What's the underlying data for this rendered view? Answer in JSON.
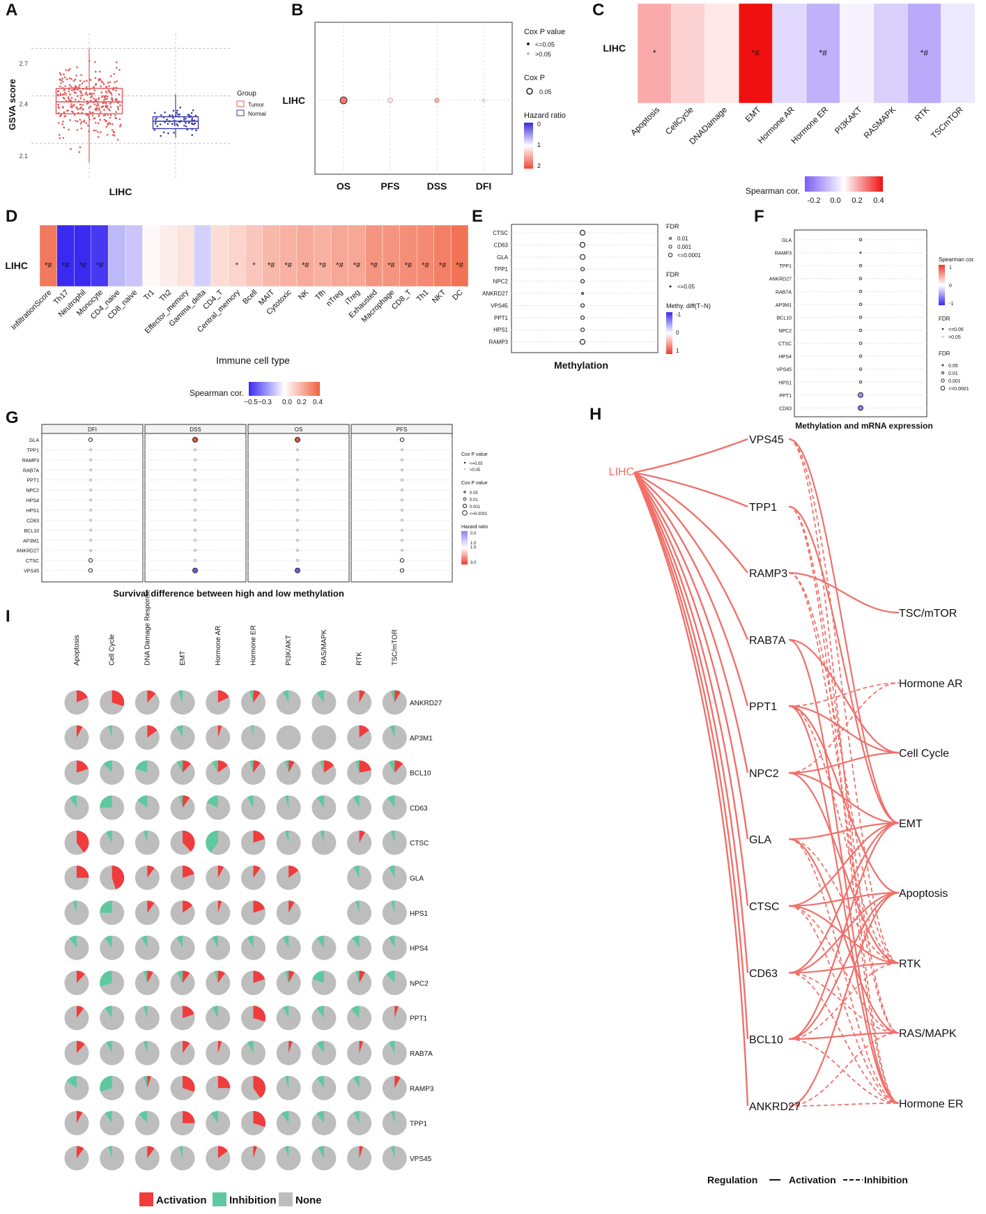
{
  "panel_letters": [
    "A",
    "B",
    "C",
    "D",
    "E",
    "F",
    "G",
    "H",
    "I"
  ],
  "chart_data": [
    {
      "id": "A",
      "type": "box",
      "ylabel": "GSVA score",
      "xlabel": "LIHC",
      "yticks": [
        "2.7",
        "2.4",
        "2.1"
      ],
      "legend_title": "Group",
      "legend": [
        "Tumor",
        "Normal"
      ],
      "colors": {
        "Tumor": "#e15759",
        "Normal": "#3a3aa8"
      },
      "boxes": [
        {
          "name": "Tumor",
          "whisker_low": 2.05,
          "q1": 2.38,
          "median": 2.46,
          "q3": 2.55,
          "whisker_high": 2.82
        },
        {
          "name": "Normal",
          "whisker_low": 2.22,
          "q1": 2.28,
          "median": 2.33,
          "q3": 2.36,
          "whisker_high": 2.51
        }
      ],
      "ylim": [
        1.95,
        2.92
      ]
    },
    {
      "id": "B",
      "type": "bubble",
      "row": "LIHC",
      "categories": [
        "OS",
        "PFS",
        "DSS",
        "DFI"
      ],
      "hazard_ratio": [
        1.75,
        1.15,
        1.5,
        1.05
      ],
      "significant": [
        true,
        false,
        false,
        false
      ],
      "legend": {
        "cox_title": "Cox P value",
        "cox_items": [
          "<=0.05",
          ">0.05"
        ],
        "size_title": "Cox P",
        "size_item": "0.05",
        "hr_title": "Hazard ratio",
        "hr_ticks": [
          "0",
          "1",
          "2"
        ]
      }
    },
    {
      "id": "C",
      "type": "heatmap",
      "row": "LIHC",
      "categories": [
        "Apoptosis",
        "CellCycle",
        "DNADamage",
        "EMT",
        "Hormone AR",
        "Hormone ER",
        "PI3KAKT",
        "RASMAPK",
        "RTK",
        "TSCmTOR"
      ],
      "values": [
        0.15,
        0.08,
        0.04,
        0.42,
        -0.1,
        -0.2,
        -0.03,
        -0.12,
        -0.22,
        -0.06
      ],
      "labels": [
        "*",
        "",
        "",
        "*#",
        "",
        "*#",
        "",
        "",
        "*#",
        ""
      ],
      "legend_title": "Spearman cor.",
      "legend_ticks": [
        "-0.2",
        "0.0",
        "0.2",
        "0.4"
      ]
    },
    {
      "id": "D",
      "type": "heatmap",
      "row": "LIHC",
      "categories": [
        "InfiltrationScore",
        "Th17",
        "Neutrophil",
        "Monocyte",
        "CD4_naive",
        "CD8_naive",
        "Tr1",
        "Th2",
        "Effector_memory",
        "Gamma_delta",
        "CD4_T",
        "Central_memory",
        "Bcell",
        "MAIT",
        "Cytotoxic",
        "NK",
        "Tfh",
        "nTreg",
        "iTreg",
        "Exhausted",
        "Macrophage",
        "CD8_T",
        "Th1",
        "NKT",
        "DC"
      ],
      "values": [
        0.38,
        -0.55,
        -0.48,
        -0.42,
        -0.15,
        -0.12,
        0.02,
        0.05,
        0.08,
        -0.1,
        0.1,
        0.12,
        0.16,
        0.2,
        0.22,
        0.24,
        0.22,
        0.25,
        0.25,
        0.3,
        0.3,
        0.32,
        0.33,
        0.36,
        0.4
      ],
      "labels": [
        "*#",
        "*#",
        "*#",
        "*#",
        "",
        "",
        "",
        "",
        "",
        "",
        "",
        "*",
        "*",
        "*#",
        "*#",
        "*#",
        "*#",
        "*#",
        "*#",
        "*#",
        "*#",
        "*#",
        "*#",
        "*#",
        "*#"
      ],
      "xlabel": "Immune cell type",
      "legend_title": "Spearman cor.",
      "legend_ticks": [
        "−0.5",
        "−0.3",
        "0.0",
        "0.2",
        "0.4"
      ]
    },
    {
      "id": "E",
      "type": "bubble",
      "rows": [
        "CTSC",
        "CD63",
        "GLA",
        "TPP1",
        "NPC2",
        "ANKRD27",
        "VPS45",
        "PPT1",
        "HPS1",
        "RAMP3"
      ],
      "sizes": [
        3,
        3,
        3,
        2,
        2,
        1,
        2,
        2,
        2,
        3
      ],
      "xlabel": "Methylation",
      "legend": {
        "fdr_title": "FDR",
        "fdr_items": [
          "0.01",
          "0.001",
          "<=0.0001"
        ],
        "fdr2_title": "FDR",
        "fdr2_items": [
          "<=0.05"
        ],
        "diff_title": "Methy. diff(T−N)",
        "diff_ticks": [
          "-1",
          "0",
          "1"
        ]
      }
    },
    {
      "id": "F",
      "type": "bubble",
      "rows": [
        "GLA",
        "RAMP3",
        "TPP1",
        "ANKRD27",
        "RAB7A",
        "AP3M1",
        "BCL10",
        "NPC2",
        "CTSC",
        "HPS4",
        "VPS45",
        "HPS1",
        "PPT1",
        "CD63"
      ],
      "sizes": [
        2,
        1,
        2,
        2,
        2,
        2,
        2,
        2,
        2,
        2,
        2,
        2,
        3,
        3
      ],
      "fill": [
        "#fff",
        "#fff",
        "#fff",
        "#fff",
        "#fff",
        "#fff",
        "#fff",
        "#fff",
        "#fff",
        "#fff",
        "#fff",
        "#fff",
        "#9b8ef0",
        "#8a7ae8"
      ],
      "xlabel": "Methylation and mRNA expression",
      "legend": {
        "cor_title": "Spearman cor.",
        "cor_ticks": [
          "1",
          "0",
          "-1"
        ],
        "fdr_title": "FDR",
        "fdr_items": [
          "<=0.05",
          ">0.05"
        ],
        "size_title": "FDR",
        "size_items": [
          "0.05",
          "0.01",
          "0.001",
          "<=0.0001"
        ]
      }
    },
    {
      "id": "G",
      "type": "bubble",
      "facets": [
        "DFI",
        "DSS",
        "OS",
        "PFS"
      ],
      "rows": [
        "GLA",
        "TPP1",
        "RAMP3",
        "RAB7A",
        "PPT1",
        "NPC2",
        "HPS4",
        "HPS1",
        "CD63",
        "BCL10",
        "AP3M1",
        "ANKRD27",
        "CTSC",
        "VPS45"
      ],
      "xlabel": "Survival difference between high and low methylation",
      "highlight": [
        {
          "facet": "DSS",
          "row": "GLA",
          "color": "#e8553a"
        },
        {
          "facet": "OS",
          "row": "GLA",
          "color": "#e8553a"
        },
        {
          "facet": "DSS",
          "row": "VPS45",
          "color": "#6a5ee0"
        },
        {
          "facet": "OS",
          "row": "VPS45",
          "color": "#6a5ee0"
        }
      ],
      "legend": {
        "cox_title": "Cox P value",
        "cox_items": [
          "<=0.05",
          ">0.05"
        ],
        "size_title": "Cox P value",
        "size_items": [
          "0.05",
          "0.01",
          "0.001",
          "<=0.0001"
        ],
        "hr_title": "Hazard ratio",
        "hr_ticks": [
          "0.0",
          "1.0",
          "1.5",
          "3.0"
        ]
      }
    },
    {
      "id": "H",
      "type": "network",
      "source": "LIHC",
      "genes": [
        "VPS45",
        "TPP1",
        "RAMP3",
        "RAB7A",
        "PPT1",
        "NPC2",
        "GLA",
        "CTSC",
        "CD63",
        "BCL10",
        "ANKRD27"
      ],
      "pathways": [
        "TSC/mTOR",
        "Hormone AR",
        "Cell Cycle",
        "EMT",
        "Apoptosis",
        "RTK",
        "RAS/MAPK",
        "Hormone ER"
      ],
      "activation": [
        [
          "RAMP3",
          "TSC/mTOR"
        ],
        [
          "VPS45",
          "EMT"
        ],
        [
          "TPP1",
          "EMT"
        ],
        [
          "PPT1",
          "Cell Cycle"
        ],
        [
          "NPC2",
          "Cell Cycle"
        ],
        [
          "NPC2",
          "EMT"
        ],
        [
          "GLA",
          "EMT"
        ],
        [
          "CTSC",
          "EMT"
        ],
        [
          "CTSC",
          "Apoptosis"
        ],
        [
          "CD63",
          "Apoptosis"
        ],
        [
          "CD63",
          "EMT"
        ],
        [
          "BCL10",
          "Apoptosis"
        ],
        [
          "BCL10",
          "EMT"
        ],
        [
          "RAB7A",
          "Hormone ER"
        ],
        [
          "PPT1",
          "Hormone ER"
        ],
        [
          "NPC2",
          "RTK"
        ],
        [
          "GLA",
          "RAS/MAPK"
        ],
        [
          "CTSC",
          "RTK"
        ],
        [
          "CD63",
          "RTK"
        ],
        [
          "BCL10",
          "RAS/MAPK"
        ],
        [
          "RAB7A",
          "Cell Cycle"
        ],
        [
          "PPT1",
          "Apoptosis"
        ],
        [
          "ANKRD27",
          "Apoptosis"
        ]
      ],
      "inhibition": [
        [
          "PPT1",
          "Hormone AR"
        ],
        [
          "NPC2",
          "Hormone AR"
        ],
        [
          "RAB7A",
          "Cell Cycle"
        ],
        [
          "VPS45",
          "RTK"
        ],
        [
          "VPS45",
          "Hormone ER"
        ],
        [
          "TPP1",
          "Hormone ER"
        ],
        [
          "RAMP3",
          "RAS/MAPK"
        ],
        [
          "GLA",
          "Hormone ER"
        ],
        [
          "CTSC",
          "RAS/MAPK"
        ],
        [
          "CD63",
          "Hormone ER"
        ],
        [
          "BCL10",
          "Hormone ER"
        ],
        [
          "ANKRD27",
          "Hormone ER"
        ],
        [
          "ANKRD27",
          "RAS/MAPK"
        ],
        [
          "CTSC",
          "Hormone ER"
        ],
        [
          "CD63",
          "RAS/MAPK"
        ],
        [
          "BCL10",
          "RTK"
        ],
        [
          "RAMP3",
          "RTK"
        ],
        [
          "TPP1",
          "RAS/MAPK"
        ],
        [
          "GLA",
          "RTK"
        ],
        [
          "PPT1",
          "RTK"
        ]
      ],
      "legend": [
        "Regulation",
        "Activation",
        "Inhibition"
      ]
    },
    {
      "id": "I",
      "type": "pie-grid",
      "columns": [
        "Apoptosis",
        "Cell Cycle",
        "DNA Damage Response",
        "EMT",
        "Hormone AR",
        "Hormone ER",
        "PI3K/AKT",
        "RAS/MAPK",
        "RTK",
        "TSC/mTOR"
      ],
      "rows": [
        "ANKRD27",
        "AP3M1",
        "BCL10",
        "CD63",
        "CTSC",
        "GLA",
        "HPS1",
        "HPS4",
        "NPC2",
        "PPT1",
        "RAB7A",
        "RAMP3",
        "TPP1",
        "VPS45"
      ],
      "values": [
        [
          [
            18,
            0
          ],
          [
            30,
            0
          ],
          [
            12,
            0
          ],
          [
            0,
            6
          ],
          [
            18,
            0
          ],
          [
            10,
            5
          ],
          [
            0,
            8
          ],
          [
            0,
            10
          ],
          [
            8,
            0
          ],
          [
            8,
            5
          ]
        ],
        [
          [
            8,
            0
          ],
          [
            0,
            5
          ],
          [
            15,
            0
          ],
          [
            0,
            8
          ],
          [
            5,
            0
          ],
          [
            0,
            3
          ],
          [
            0,
            0
          ],
          [
            0,
            0
          ],
          [
            15,
            0
          ],
          [
            0,
            6
          ]
        ],
        [
          [
            20,
            0
          ],
          [
            0,
            12
          ],
          [
            0,
            20
          ],
          [
            12,
            8
          ],
          [
            15,
            8
          ],
          [
            10,
            5
          ],
          [
            8,
            5
          ],
          [
            15,
            5
          ],
          [
            22,
            5
          ],
          [
            12,
            8
          ]
        ],
        [
          [
            0,
            10
          ],
          [
            0,
            25
          ],
          [
            0,
            15
          ],
          [
            10,
            5
          ],
          [
            0,
            18
          ],
          [
            0,
            8
          ],
          [
            0,
            5
          ],
          [
            0,
            10
          ],
          [
            0,
            8
          ],
          [
            0,
            10
          ]
        ],
        [
          [
            40,
            0
          ],
          [
            0,
            8
          ],
          [
            0,
            5
          ],
          [
            38,
            0
          ],
          [
            0,
            40
          ],
          [
            20,
            0
          ],
          [
            0,
            5
          ],
          [
            0,
            5
          ],
          [
            8,
            0
          ],
          [
            0,
            5
          ]
        ],
        [
          [
            25,
            0
          ],
          [
            45,
            0
          ],
          [
            10,
            0
          ],
          [
            20,
            0
          ],
          [
            8,
            0
          ],
          [
            10,
            0
          ],
          [
            15,
            0
          ],
          null,
          [
            0,
            8
          ],
          [
            0,
            8
          ]
        ],
        [
          [
            0,
            5
          ],
          [
            0,
            25
          ],
          [
            10,
            0
          ],
          [
            15,
            0
          ],
          [
            5,
            0
          ],
          [
            20,
            0
          ],
          [
            8,
            0
          ],
          null,
          [
            0,
            5
          ],
          [
            0,
            5
          ]
        ],
        [
          [
            0,
            10
          ],
          [
            0,
            10
          ],
          [
            0,
            8
          ],
          [
            0,
            8
          ],
          [
            0,
            8
          ],
          [
            0,
            8
          ],
          [
            0,
            8
          ],
          [
            0,
            10
          ],
          [
            0,
            10
          ],
          [
            0,
            8
          ]
        ],
        [
          [
            12,
            0
          ],
          [
            0,
            30
          ],
          [
            8,
            5
          ],
          [
            10,
            8
          ],
          [
            10,
            5
          ],
          [
            20,
            0
          ],
          [
            8,
            5
          ],
          [
            0,
            20
          ],
          [
            8,
            5
          ],
          [
            0,
            12
          ]
        ],
        [
          [
            10,
            0
          ],
          [
            0,
            10
          ],
          [
            0,
            5
          ],
          [
            20,
            0
          ],
          [
            0,
            8
          ],
          [
            30,
            0
          ],
          [
            0,
            8
          ],
          [
            0,
            10
          ],
          [
            0,
            12
          ],
          [
            5,
            0
          ]
        ],
        [
          [
            12,
            0
          ],
          [
            0,
            8
          ],
          [
            0,
            5
          ],
          [
            10,
            0
          ],
          [
            5,
            0
          ],
          [
            0,
            8
          ],
          [
            5,
            0
          ],
          [
            0,
            10
          ],
          [
            5,
            0
          ],
          [
            0,
            8
          ]
        ],
        [
          [
            0,
            15
          ],
          [
            0,
            30
          ],
          [
            5,
            5
          ],
          [
            30,
            0
          ],
          [
            25,
            0
          ],
          [
            40,
            0
          ],
          [
            0,
            5
          ],
          [
            0,
            10
          ],
          [
            0,
            8
          ],
          [
            8,
            0
          ]
        ],
        [
          [
            8,
            0
          ],
          [
            0,
            10
          ],
          [
            0,
            12
          ],
          [
            25,
            0
          ],
          [
            0,
            10
          ],
          [
            30,
            0
          ],
          [
            0,
            10
          ],
          [
            0,
            10
          ],
          [
            0,
            8
          ],
          [
            0,
            5
          ]
        ],
        [
          [
            10,
            0
          ],
          [
            0,
            5
          ],
          [
            10,
            0
          ],
          [
            0,
            5
          ],
          [
            15,
            0
          ],
          [
            5,
            0
          ],
          [
            0,
            5
          ],
          [
            0,
            8
          ],
          [
            5,
            0
          ],
          [
            0,
            5
          ]
        ]
      ],
      "legend": [
        "Activation",
        "Inhibition",
        "None"
      ],
      "colors": {
        "activation": "#f03c3c",
        "inhibition": "#5ec9a0",
        "none": "#bdbdbd"
      }
    }
  ]
}
